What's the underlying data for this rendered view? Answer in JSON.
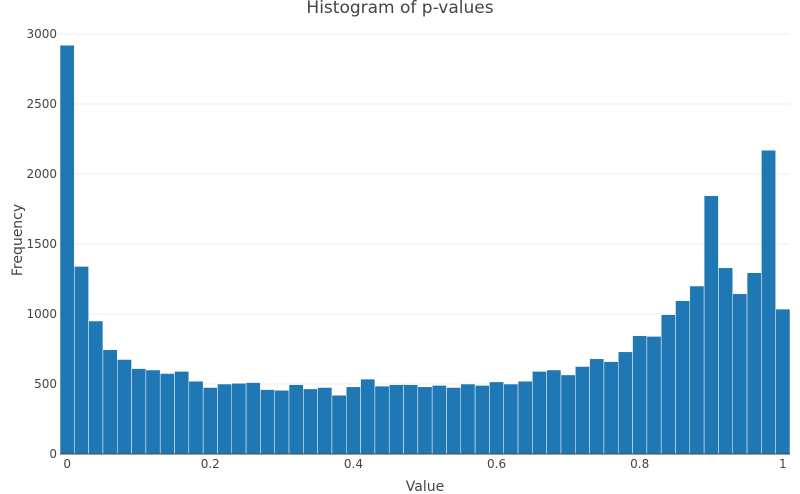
{
  "chart_data": {
    "type": "bar",
    "title": "Histogram of p-values",
    "xlabel": "Value",
    "ylabel": "Frequency",
    "xlim": [
      -0.01,
      1.01
    ],
    "ylim": [
      0,
      3000
    ],
    "bin_width": 0.02,
    "bin_starts": [
      -0.01,
      0.01,
      0.03,
      0.05,
      0.07,
      0.09,
      0.11,
      0.13,
      0.15,
      0.17,
      0.19,
      0.21,
      0.23,
      0.25,
      0.27,
      0.29,
      0.31,
      0.33,
      0.35,
      0.37,
      0.39,
      0.41,
      0.43,
      0.45,
      0.47,
      0.49,
      0.51,
      0.53,
      0.55,
      0.57,
      0.59,
      0.61,
      0.63,
      0.65,
      0.67,
      0.69,
      0.71,
      0.73,
      0.75,
      0.77,
      0.79,
      0.81,
      0.83,
      0.85,
      0.87,
      0.89,
      0.91,
      0.93,
      0.95,
      0.97,
      0.99
    ],
    "values": [
      2920,
      1340,
      950,
      745,
      675,
      610,
      600,
      575,
      590,
      520,
      475,
      500,
      505,
      510,
      460,
      455,
      495,
      465,
      475,
      420,
      480,
      535,
      485,
      495,
      495,
      480,
      490,
      475,
      500,
      490,
      515,
      500,
      520,
      590,
      600,
      565,
      625,
      680,
      660,
      730,
      845,
      840,
      995,
      1095,
      1200,
      1845,
      1330,
      1145,
      1295,
      2170,
      1035
    ],
    "x_ticks": [
      "0",
      "0.2",
      "0.4",
      "0.6",
      "0.8",
      "1"
    ],
    "x_tick_values": [
      0,
      0.2,
      0.4,
      0.6,
      0.8,
      1
    ],
    "y_ticks": [
      "0",
      "500",
      "1000",
      "1500",
      "2000",
      "2500",
      "3000"
    ],
    "y_tick_values": [
      0,
      500,
      1000,
      1500,
      2000,
      2500,
      3000
    ],
    "grid": true,
    "bar_color": "#1f77b4"
  }
}
